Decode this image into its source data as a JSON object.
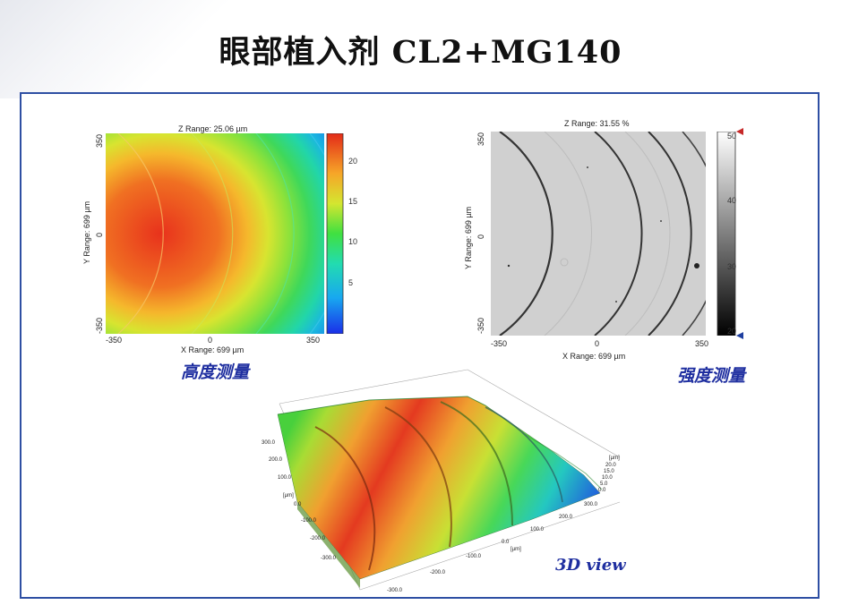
{
  "title": "眼部植入剂 CL2+MG140",
  "height_map": {
    "z_range": "Z Range: 25.06 µm",
    "y_range": "Y Range: 699 µm",
    "x_range": "X Range: 699 µm",
    "y_ticks": [
      "350",
      "0",
      "-350"
    ],
    "x_ticks": [
      "-350",
      "0",
      "350"
    ],
    "colorbar_ticks": [
      "20",
      "15",
      "10",
      "5"
    ],
    "caption": "高度测量"
  },
  "intensity_map": {
    "z_range": "Z Range:  31.55 %",
    "y_range": "Y Range: 699 µm",
    "x_range": "X Range: 699 µm",
    "y_ticks": [
      "350",
      "0",
      "-350"
    ],
    "x_ticks": [
      "-350",
      "0",
      "350"
    ],
    "colorbar_ticks": [
      "50",
      "40",
      "30",
      "20"
    ],
    "caption": "强度测量"
  },
  "view3d": {
    "caption": "3D view",
    "y_axis_ticks": [
      "300.0",
      "200.0",
      "100.0",
      "0.0",
      "-100.0",
      "-200.0",
      "-300.0"
    ],
    "y_axis_label": "[µm]",
    "x_axis_ticks": [
      "-300.0",
      "-200.0",
      "-100.0",
      "0.0",
      "100.0",
      "200.0",
      "300.0"
    ],
    "x_axis_label": "[µm]",
    "z_axis_ticks": [
      "20.0",
      "15.0",
      "10.0",
      "5.0",
      "0.0"
    ],
    "z_axis_label": "[µm]"
  },
  "colors": {
    "frame": "#2e4fa3",
    "caption": "#1f2fa0"
  }
}
